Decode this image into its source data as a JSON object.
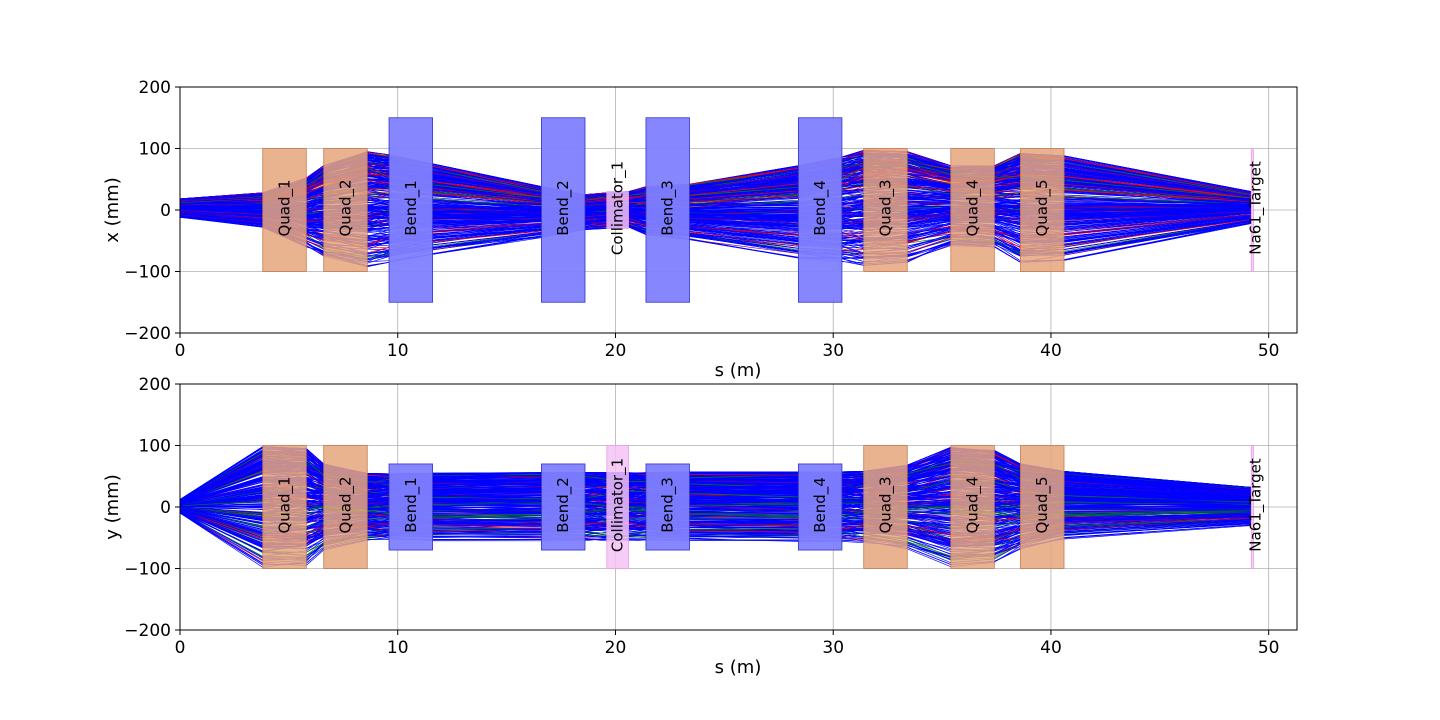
{
  "chart_data": [
    {
      "type": "line",
      "panel": "top",
      "title": "",
      "xlabel": "s (m)",
      "ylabel": "x (mm)",
      "xlim": [
        0,
        51.3
      ],
      "ylim": [
        -200,
        200
      ],
      "xticks": [
        0,
        10,
        20,
        30,
        40,
        50
      ],
      "yticks": [
        -200,
        -100,
        0,
        100,
        200
      ],
      "grid": true,
      "trajectory_colors": [
        "#0000ff",
        "#008000",
        "#ff0000",
        "#800080"
      ],
      "trajectory_count_approx": 300,
      "envelope": {
        "s": [
          0,
          3.8,
          5.8,
          6.6,
          8.6,
          9.6,
          11.6,
          16.6,
          18.6,
          19.6,
          20.6,
          21.4,
          23.4,
          28.4,
          30.4,
          31.4,
          33.4,
          35.4,
          37.4,
          38.6,
          40.6,
          49.2
        ],
        "max": [
          18,
          28,
          52,
          72,
          95,
          90,
          75,
          38,
          25,
          28,
          30,
          38,
          42,
          72,
          86,
          97,
          95,
          72,
          72,
          92,
          88,
          30
        ],
        "min": [
          -12,
          -28,
          -60,
          -75,
          -92,
          -85,
          -72,
          -45,
          -32,
          -30,
          -28,
          -40,
          -48,
          -78,
          -84,
          -90,
          -85,
          -58,
          -60,
          -85,
          -82,
          -22
        ]
      },
      "elements": [
        {
          "name": "Quad_1",
          "kind": "quad",
          "s_start": 3.8,
          "s_end": 5.8,
          "half_aperture": 100
        },
        {
          "name": "Quad_2",
          "kind": "quad",
          "s_start": 6.6,
          "s_end": 8.6,
          "half_aperture": 100
        },
        {
          "name": "Bend_1",
          "kind": "bend",
          "s_start": 9.6,
          "s_end": 11.6,
          "half_aperture": 150
        },
        {
          "name": "Bend_2",
          "kind": "bend",
          "s_start": 16.6,
          "s_end": 18.6,
          "half_aperture": 150
        },
        {
          "name": "Collimator_1",
          "kind": "collimator",
          "s_start": 19.6,
          "s_end": 20.6,
          "half_aperture": 30
        },
        {
          "name": "Bend_3",
          "kind": "bend",
          "s_start": 21.4,
          "s_end": 23.4,
          "half_aperture": 150
        },
        {
          "name": "Bend_4",
          "kind": "bend",
          "s_start": 28.4,
          "s_end": 30.4,
          "half_aperture": 150
        },
        {
          "name": "Quad_3",
          "kind": "quad",
          "s_start": 31.4,
          "s_end": 33.4,
          "half_aperture": 100
        },
        {
          "name": "Quad_4",
          "kind": "quad",
          "s_start": 35.4,
          "s_end": 37.4,
          "half_aperture": 100
        },
        {
          "name": "Quad_5",
          "kind": "quad",
          "s_start": 38.6,
          "s_end": 40.6,
          "half_aperture": 100
        },
        {
          "name": "Na61_Target",
          "kind": "target",
          "s_start": 49.2,
          "s_end": 49.3,
          "half_aperture": 100
        }
      ]
    },
    {
      "type": "line",
      "panel": "bottom",
      "title": "",
      "xlabel": "s (m)",
      "ylabel": "y (mm)",
      "xlim": [
        0,
        51.3
      ],
      "ylim": [
        -200,
        200
      ],
      "xticks": [
        0,
        10,
        20,
        30,
        40,
        50
      ],
      "yticks": [
        -200,
        -100,
        0,
        100,
        200
      ],
      "grid": true,
      "trajectory_colors": [
        "#0000ff",
        "#008000",
        "#ff0000",
        "#800080"
      ],
      "trajectory_count_approx": 300,
      "envelope": {
        "s": [
          0,
          3.8,
          5.8,
          6.6,
          8.6,
          9.6,
          11.6,
          16.6,
          18.6,
          19.6,
          20.6,
          21.4,
          23.4,
          28.4,
          30.4,
          31.4,
          33.4,
          35.4,
          37.4,
          38.6,
          40.6,
          49.2
        ],
        "max": [
          12,
          98,
          95,
          70,
          55,
          54,
          55,
          56,
          56,
          56,
          56,
          56,
          57,
          57,
          57,
          58,
          68,
          97,
          92,
          70,
          58,
          32
        ],
        "min": [
          -10,
          -98,
          -95,
          -70,
          -55,
          -54,
          -55,
          -55,
          -55,
          -55,
          -55,
          -55,
          -56,
          -56,
          -56,
          -58,
          -68,
          -97,
          -92,
          -70,
          -52,
          -30
        ]
      },
      "elements": [
        {
          "name": "Quad_1",
          "kind": "quad",
          "s_start": 3.8,
          "s_end": 5.8,
          "half_aperture": 100
        },
        {
          "name": "Quad_2",
          "kind": "quad",
          "s_start": 6.6,
          "s_end": 8.6,
          "half_aperture": 100
        },
        {
          "name": "Bend_1",
          "kind": "bend",
          "s_start": 9.6,
          "s_end": 11.6,
          "half_aperture": 70
        },
        {
          "name": "Bend_2",
          "kind": "bend",
          "s_start": 16.6,
          "s_end": 18.6,
          "half_aperture": 70
        },
        {
          "name": "Collimator_1",
          "kind": "collimator",
          "s_start": 19.6,
          "s_end": 20.6,
          "half_aperture": 100
        },
        {
          "name": "Bend_3",
          "kind": "bend",
          "s_start": 21.4,
          "s_end": 23.4,
          "half_aperture": 70
        },
        {
          "name": "Bend_4",
          "kind": "bend",
          "s_start": 28.4,
          "s_end": 30.4,
          "half_aperture": 70
        },
        {
          "name": "Quad_3",
          "kind": "quad",
          "s_start": 31.4,
          "s_end": 33.4,
          "half_aperture": 100
        },
        {
          "name": "Quad_4",
          "kind": "quad",
          "s_start": 35.4,
          "s_end": 37.4,
          "half_aperture": 100
        },
        {
          "name": "Quad_5",
          "kind": "quad",
          "s_start": 38.6,
          "s_end": 40.6,
          "half_aperture": 100
        },
        {
          "name": "Na61_Target",
          "kind": "target",
          "s_start": 49.2,
          "s_end": 49.3,
          "half_aperture": 100
        }
      ]
    }
  ],
  "element_colors": {
    "quad": "#e6a67c",
    "bend": "#8080ff",
    "collimator": "#f4c2f4",
    "target": "#f4c2f4"
  }
}
